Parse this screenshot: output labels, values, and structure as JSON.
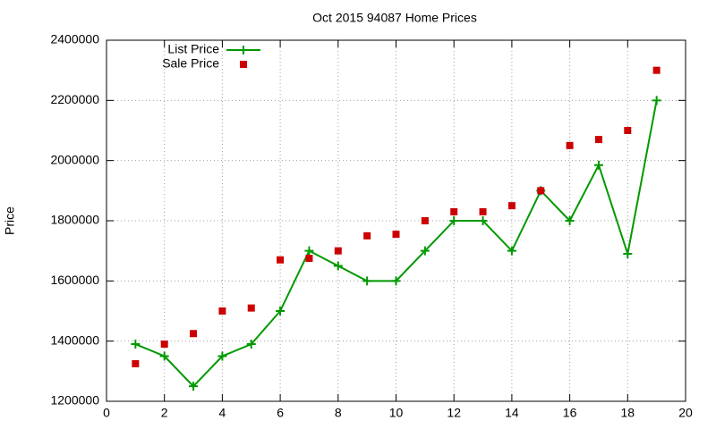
{
  "chart_data": {
    "type": "line",
    "title": "Oct 2015 94087 Home Prices",
    "y_label": "Price",
    "x": [
      1,
      2,
      3,
      4,
      5,
      6,
      7,
      8,
      9,
      10,
      11,
      12,
      13,
      14,
      15,
      16,
      17,
      18,
      19
    ],
    "series": [
      {
        "name": "List Price",
        "color": "#009900",
        "mode": "lines+markers",
        "values": [
          1390000,
          1350000,
          1250000,
          1350000,
          1390000,
          1500000,
          1700000,
          1650000,
          1600000,
          1600000,
          1700000,
          1800000,
          1800000,
          1700000,
          1900000,
          1800000,
          1985000,
          1690000,
          2200000
        ]
      },
      {
        "name": "Sale Price",
        "color": "#cc0000",
        "mode": "markers",
        "values": [
          1325000,
          1390000,
          1425000,
          1500000,
          1510000,
          1670000,
          1675000,
          1700000,
          1750000,
          1755000,
          1800000,
          1830000,
          1830000,
          1850000,
          1900000,
          2050000,
          2070000,
          2100000,
          2300000
        ]
      }
    ],
    "xlim": [
      0,
      20
    ],
    "xticks": [
      0,
      2,
      4,
      6,
      8,
      10,
      12,
      14,
      16,
      18,
      20
    ],
    "ylim": [
      1200000,
      2400000
    ],
    "yticks": [
      1200000,
      1400000,
      1600000,
      1800000,
      2000000,
      2200000,
      2400000
    ],
    "grid": true,
    "legend": "top-left"
  }
}
